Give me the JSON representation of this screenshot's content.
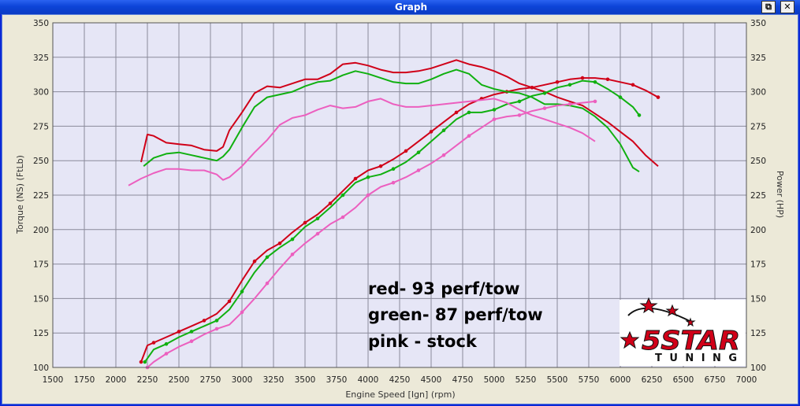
{
  "window": {
    "title": "Graph",
    "restore_label": "⧉",
    "close_label": "✕"
  },
  "chart_data": {
    "type": "line",
    "xlabel": "Engine Speed [Ign] (rpm)",
    "ylabel_left": "Torque (NS) (FtLb)",
    "ylabel_right": "Power (HP)",
    "xlim": [
      1500,
      7000
    ],
    "ylim": [
      100,
      350
    ],
    "ylim_right": [
      100,
      350
    ],
    "x_ticks": [
      1500,
      1750,
      2000,
      2250,
      2500,
      2750,
      3000,
      3250,
      3500,
      3750,
      4000,
      4250,
      4500,
      4750,
      5000,
      5250,
      5500,
      5750,
      6000,
      6250,
      6500,
      6750,
      7000
    ],
    "y_ticks": [
      100,
      125,
      150,
      175,
      200,
      225,
      250,
      275,
      300,
      325,
      350
    ],
    "grid": true,
    "colors": {
      "red": "#d00018",
      "green": "#10b010",
      "pink": "#ec5fbf",
      "plot_bg": "#e6e6f6"
    },
    "annotations": [
      "red- 93 perf/tow",
      "green- 87 perf/tow",
      "pink - stock"
    ],
    "logo": {
      "big": "5STAR",
      "small": "TUNING"
    },
    "series": [
      {
        "color": "red",
        "kind": "torque",
        "x": [
          2200,
          2250,
          2300,
          2400,
          2500,
          2600,
          2700,
          2800,
          2850,
          2900,
          3000,
          3100,
          3200,
          3300,
          3400,
          3500,
          3600,
          3700,
          3800,
          3900,
          4000,
          4100,
          4200,
          4300,
          4400,
          4500,
          4600,
          4700,
          4800,
          4900,
          5000,
          5100,
          5200,
          5300,
          5400,
          5500,
          5600,
          5700,
          5800,
          5900,
          6000,
          6100,
          6200,
          6300
        ],
        "y": [
          249,
          269,
          268,
          263,
          262,
          261,
          258,
          257,
          260,
          272,
          285,
          299,
          304,
          303,
          306,
          309,
          309,
          313,
          320,
          321,
          319,
          316,
          314,
          314,
          315,
          317,
          320,
          323,
          320,
          318,
          315,
          311,
          306,
          303,
          300,
          296,
          293,
          290,
          284,
          278,
          271,
          264,
          254,
          246
        ]
      },
      {
        "color": "red",
        "kind": "power",
        "x": [
          2200,
          2250,
          2300,
          2400,
          2500,
          2600,
          2700,
          2800,
          2900,
          3000,
          3100,
          3200,
          3300,
          3400,
          3500,
          3600,
          3700,
          3800,
          3900,
          4000,
          4100,
          4200,
          4300,
          4400,
          4500,
          4600,
          4700,
          4800,
          4900,
          5000,
          5100,
          5200,
          5300,
          5400,
          5500,
          5600,
          5700,
          5800,
          5900,
          6000,
          6100,
          6200,
          6300
        ],
        "y": [
          104,
          116,
          118,
          122,
          126,
          130,
          134,
          139,
          148,
          163,
          177,
          185,
          190,
          198,
          205,
          211,
          219,
          228,
          237,
          243,
          246,
          251,
          257,
          264,
          271,
          278,
          285,
          291,
          295,
          298,
          300,
          302,
          303,
          305,
          307,
          309,
          310,
          310,
          309,
          307,
          305,
          301,
          296
        ]
      },
      {
        "color": "green",
        "kind": "torque",
        "x": [
          2220,
          2300,
          2400,
          2500,
          2600,
          2700,
          2800,
          2850,
          2900,
          3000,
          3100,
          3200,
          3300,
          3400,
          3500,
          3600,
          3700,
          3800,
          3900,
          4000,
          4100,
          4200,
          4300,
          4400,
          4500,
          4600,
          4700,
          4800,
          4900,
          5000,
          5100,
          5200,
          5300,
          5400,
          5500,
          5600,
          5700,
          5800,
          5900,
          6000,
          6100,
          6150
        ],
        "y": [
          246,
          252,
          255,
          256,
          254,
          252,
          250,
          253,
          258,
          274,
          289,
          296,
          298,
          300,
          304,
          307,
          308,
          312,
          315,
          313,
          310,
          307,
          306,
          306,
          309,
          313,
          316,
          313,
          305,
          302,
          300,
          299,
          296,
          291,
          291,
          290,
          288,
          282,
          274,
          262,
          245,
          242
        ]
      },
      {
        "color": "green",
        "kind": "power",
        "x": [
          2230,
          2300,
          2400,
          2500,
          2600,
          2700,
          2800,
          2900,
          3000,
          3100,
          3200,
          3300,
          3400,
          3500,
          3600,
          3700,
          3800,
          3900,
          4000,
          4100,
          4200,
          4300,
          4400,
          4500,
          4600,
          4700,
          4800,
          4900,
          5000,
          5100,
          5200,
          5300,
          5400,
          5500,
          5600,
          5700,
          5800,
          5900,
          6000,
          6100,
          6150
        ],
        "y": [
          104,
          113,
          117,
          122,
          126,
          130,
          134,
          142,
          155,
          169,
          180,
          187,
          193,
          202,
          208,
          216,
          225,
          234,
          238,
          240,
          244,
          249,
          256,
          264,
          272,
          280,
          285,
          285,
          287,
          291,
          293,
          297,
          299,
          303,
          305,
          308,
          307,
          302,
          296,
          289,
          283
        ]
      },
      {
        "color": "pink",
        "kind": "torque",
        "x": [
          2100,
          2200,
          2300,
          2400,
          2500,
          2600,
          2700,
          2800,
          2850,
          2900,
          3000,
          3100,
          3200,
          3300,
          3400,
          3500,
          3600,
          3700,
          3800,
          3900,
          4000,
          4100,
          4200,
          4300,
          4400,
          4500,
          4600,
          4700,
          4800,
          4900,
          5000,
          5100,
          5200,
          5300,
          5400,
          5500,
          5600,
          5700,
          5800
        ],
        "y": [
          232,
          237,
          241,
          244,
          244,
          243,
          243,
          240,
          236,
          238,
          246,
          256,
          265,
          276,
          281,
          283,
          287,
          290,
          288,
          289,
          293,
          295,
          291,
          289,
          289,
          290,
          291,
          292,
          293,
          294,
          295,
          292,
          287,
          283,
          280,
          277,
          274,
          270,
          264
        ]
      },
      {
        "color": "pink",
        "kind": "power",
        "x": [
          2250,
          2300,
          2400,
          2500,
          2600,
          2700,
          2800,
          2900,
          3000,
          3100,
          3200,
          3300,
          3400,
          3500,
          3600,
          3700,
          3800,
          3900,
          4000,
          4100,
          4200,
          4300,
          4400,
          4500,
          4600,
          4700,
          4800,
          4900,
          5000,
          5100,
          5200,
          5300,
          5400,
          5500,
          5600,
          5700,
          5800
        ],
        "y": [
          100,
          104,
          110,
          115,
          119,
          124,
          128,
          131,
          140,
          150,
          161,
          172,
          182,
          190,
          197,
          204,
          209,
          216,
          225,
          231,
          234,
          238,
          243,
          248,
          254,
          261,
          268,
          274,
          280,
          282,
          283,
          286,
          288,
          290,
          291,
          292,
          293
        ]
      }
    ]
  }
}
